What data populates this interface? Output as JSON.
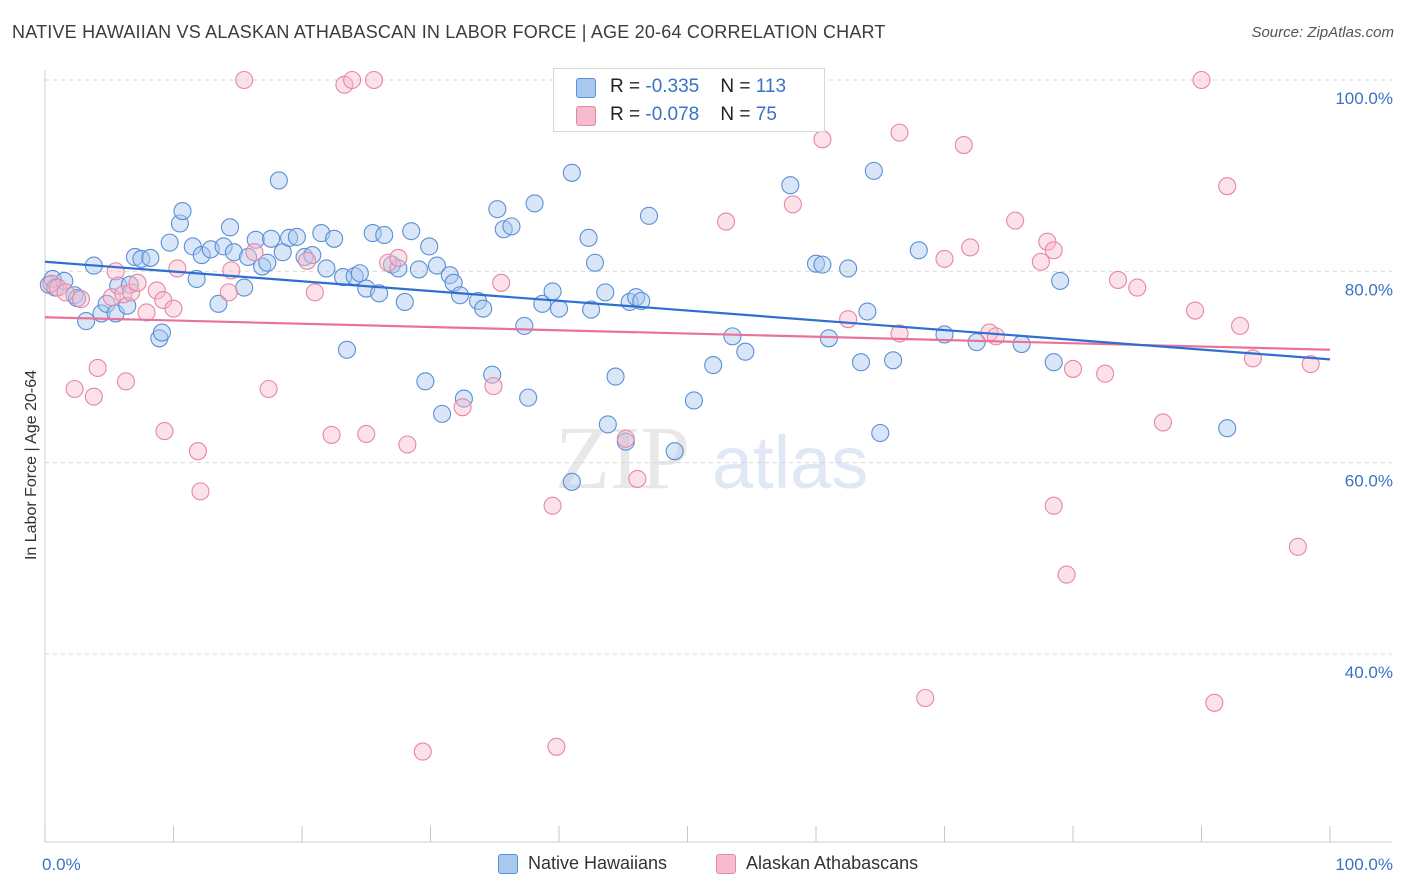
{
  "title": "NATIVE HAWAIIAN VS ALASKAN ATHABASCAN IN LABOR FORCE | AGE 20-64 CORRELATION CHART",
  "source": "Source: ZipAtlas.com",
  "watermark": {
    "zip": "ZIP",
    "atlas": "atlas"
  },
  "legend_top": {
    "rows": [
      {
        "r_label": "R = ",
        "r_value": "-0.335",
        "n_label": "N = ",
        "n_value": "113"
      },
      {
        "r_label": "R = ",
        "r_value": "-0.078",
        "n_label": "N = ",
        "n_value": "75"
      }
    ]
  },
  "colors": {
    "blue_fill": "#a9c8f0",
    "blue_stroke": "#5b8fd6",
    "blue_line": "#2f6fd0",
    "pink_fill": "#f6bccd",
    "pink_stroke": "#e886a6",
    "pink_line": "#e8739a",
    "axis_text": "#3a72c4"
  },
  "chart_data": {
    "type": "scatter",
    "title": "NATIVE HAWAIIAN VS ALASKAN ATHABASCAN IN LABOR FORCE | AGE 20-64 CORRELATION CHART",
    "xlabel": "",
    "ylabel": "In Labor Force | Age 20-64",
    "xlim": [
      0,
      100
    ],
    "ylim": [
      20,
      102
    ],
    "x_tick_labels": [
      "0.0%",
      "100.0%"
    ],
    "y_ticks": [
      40,
      60,
      80,
      100
    ],
    "y_tick_labels": [
      "40.0%",
      "60.0%",
      "80.0%",
      "100.0%"
    ],
    "grid": "horizontal dashed",
    "legend_position": "top-center and bottom",
    "series": [
      {
        "name": "Native Hawaiians",
        "color": "#5b8fd6",
        "r": -0.335,
        "n": 113,
        "trend": {
          "x": [
            0,
            100
          ],
          "y": [
            81.0,
            70.8
          ]
        },
        "points": [
          [
            0.3,
            78.6
          ],
          [
            0.6,
            79.2
          ],
          [
            0.8,
            78.3
          ],
          [
            1.5,
            79.0
          ],
          [
            2.3,
            77.5
          ],
          [
            2.5,
            77.2
          ],
          [
            3.2,
            74.8
          ],
          [
            3.8,
            80.6
          ],
          [
            4.4,
            75.6
          ],
          [
            4.8,
            76.6
          ],
          [
            5.5,
            75.6
          ],
          [
            5.7,
            78.5
          ],
          [
            6.4,
            76.4
          ],
          [
            6.6,
            78.6
          ],
          [
            7.0,
            81.5
          ],
          [
            7.5,
            81.3
          ],
          [
            8.2,
            81.4
          ],
          [
            8.9,
            73.0
          ],
          [
            9.1,
            73.6
          ],
          [
            9.7,
            83.0
          ],
          [
            10.5,
            85.0
          ],
          [
            10.7,
            86.3
          ],
          [
            11.5,
            82.6
          ],
          [
            11.8,
            79.2
          ],
          [
            12.2,
            81.7
          ],
          [
            12.9,
            82.3
          ],
          [
            13.5,
            76.6
          ],
          [
            13.9,
            82.6
          ],
          [
            14.4,
            84.6
          ],
          [
            14.7,
            82.0
          ],
          [
            15.5,
            78.3
          ],
          [
            15.8,
            81.5
          ],
          [
            16.4,
            83.3
          ],
          [
            16.9,
            80.5
          ],
          [
            17.3,
            80.9
          ],
          [
            17.6,
            83.4
          ],
          [
            18.2,
            89.5
          ],
          [
            18.5,
            82.0
          ],
          [
            19.0,
            83.5
          ],
          [
            19.6,
            83.6
          ],
          [
            20.2,
            81.5
          ],
          [
            20.8,
            81.7
          ],
          [
            21.5,
            84.0
          ],
          [
            21.9,
            80.3
          ],
          [
            22.5,
            83.4
          ],
          [
            23.2,
            79.4
          ],
          [
            23.5,
            71.8
          ],
          [
            24.1,
            79.5
          ],
          [
            24.5,
            79.8
          ],
          [
            25.0,
            78.2
          ],
          [
            25.5,
            84.0
          ],
          [
            26.0,
            77.7
          ],
          [
            26.4,
            83.8
          ],
          [
            27.0,
            80.7
          ],
          [
            27.5,
            80.3
          ],
          [
            28.0,
            76.8
          ],
          [
            28.5,
            84.2
          ],
          [
            29.1,
            80.2
          ],
          [
            29.6,
            68.5
          ],
          [
            29.9,
            82.6
          ],
          [
            30.5,
            80.6
          ],
          [
            30.9,
            65.1
          ],
          [
            31.5,
            79.6
          ],
          [
            31.8,
            78.8
          ],
          [
            32.3,
            77.5
          ],
          [
            32.6,
            66.7
          ],
          [
            33.7,
            76.9
          ],
          [
            34.1,
            76.1
          ],
          [
            34.8,
            69.2
          ],
          [
            35.2,
            86.5
          ],
          [
            35.7,
            84.4
          ],
          [
            36.3,
            84.7
          ],
          [
            37.3,
            74.3
          ],
          [
            37.6,
            66.8
          ],
          [
            38.1,
            87.1
          ],
          [
            38.7,
            76.6
          ],
          [
            39.5,
            77.9
          ],
          [
            40.0,
            76.1
          ],
          [
            41.0,
            90.3
          ],
          [
            41.0,
            58.0
          ],
          [
            42.3,
            83.5
          ],
          [
            42.5,
            76.0
          ],
          [
            42.8,
            80.9
          ],
          [
            43.6,
            77.8
          ],
          [
            43.8,
            64.0
          ],
          [
            44.4,
            69.0
          ],
          [
            45.2,
            62.2
          ],
          [
            45.5,
            76.8
          ],
          [
            46.0,
            77.3
          ],
          [
            46.4,
            76.9
          ],
          [
            47.0,
            85.8
          ],
          [
            49.0,
            61.2
          ],
          [
            50.5,
            66.5
          ],
          [
            52.0,
            70.2
          ],
          [
            53.5,
            73.2
          ],
          [
            54.5,
            71.6
          ],
          [
            58.0,
            89.0
          ],
          [
            60.0,
            80.8
          ],
          [
            60.5,
            80.7
          ],
          [
            61.0,
            73.0
          ],
          [
            62.5,
            80.3
          ],
          [
            63.5,
            70.5
          ],
          [
            64.0,
            75.8
          ],
          [
            64.5,
            90.5
          ],
          [
            65.0,
            63.1
          ],
          [
            66.0,
            70.7
          ],
          [
            68.0,
            82.2
          ],
          [
            70.0,
            73.4
          ],
          [
            72.5,
            72.6
          ],
          [
            76.0,
            72.4
          ],
          [
            78.5,
            70.5
          ],
          [
            79.0,
            79.0
          ],
          [
            92.0,
            63.6
          ]
        ]
      },
      {
        "name": "Alaskan Athabascans",
        "color": "#e886a6",
        "r": -0.078,
        "n": 75,
        "trend": {
          "x": [
            0,
            100
          ],
          "y": [
            75.2,
            71.8
          ]
        },
        "points": [
          [
            0.5,
            78.7
          ],
          [
            1.0,
            78.3
          ],
          [
            1.6,
            77.8
          ],
          [
            2.3,
            67.7
          ],
          [
            2.8,
            77.1
          ],
          [
            3.8,
            66.9
          ],
          [
            4.1,
            69.9
          ],
          [
            5.2,
            77.3
          ],
          [
            5.5,
            80.0
          ],
          [
            6.1,
            77.6
          ],
          [
            6.3,
            68.5
          ],
          [
            6.7,
            77.8
          ],
          [
            7.2,
            78.8
          ],
          [
            7.9,
            75.7
          ],
          [
            8.7,
            78.0
          ],
          [
            9.2,
            77.0
          ],
          [
            9.3,
            63.3
          ],
          [
            10.0,
            76.1
          ],
          [
            10.3,
            80.3
          ],
          [
            11.9,
            61.2
          ],
          [
            12.1,
            57.0
          ],
          [
            14.3,
            77.8
          ],
          [
            14.5,
            80.1
          ],
          [
            15.5,
            100.0
          ],
          [
            16.3,
            82.0
          ],
          [
            17.4,
            67.7
          ],
          [
            20.4,
            81.1
          ],
          [
            21.0,
            77.8
          ],
          [
            22.3,
            62.9
          ],
          [
            23.3,
            99.5
          ],
          [
            23.9,
            100.0
          ],
          [
            25.0,
            63.0
          ],
          [
            25.6,
            100.0
          ],
          [
            26.7,
            80.9
          ],
          [
            27.5,
            81.4
          ],
          [
            28.2,
            61.9
          ],
          [
            29.4,
            29.8
          ],
          [
            32.5,
            65.8
          ],
          [
            34.9,
            68.0
          ],
          [
            35.5,
            78.8
          ],
          [
            39.5,
            55.5
          ],
          [
            39.8,
            30.3
          ],
          [
            45.2,
            62.5
          ],
          [
            46.1,
            58.3
          ],
          [
            53.0,
            85.2
          ],
          [
            58.2,
            87.0
          ],
          [
            60.5,
            93.8
          ],
          [
            62.5,
            75.0
          ],
          [
            66.5,
            73.5
          ],
          [
            66.5,
            94.5
          ],
          [
            68.5,
            35.4
          ],
          [
            70.0,
            81.3
          ],
          [
            71.5,
            93.2
          ],
          [
            72.0,
            82.5
          ],
          [
            73.5,
            73.6
          ],
          [
            74.0,
            73.2
          ],
          [
            75.5,
            85.3
          ],
          [
            77.5,
            81.0
          ],
          [
            78.0,
            83.1
          ],
          [
            78.5,
            55.5
          ],
          [
            78.5,
            82.2
          ],
          [
            79.5,
            48.3
          ],
          [
            80.0,
            69.8
          ],
          [
            82.5,
            69.3
          ],
          [
            83.5,
            79.1
          ],
          [
            85.0,
            78.3
          ],
          [
            87.0,
            64.2
          ],
          [
            89.5,
            75.9
          ],
          [
            90.0,
            100.0
          ],
          [
            91.0,
            34.9
          ],
          [
            92.0,
            88.9
          ],
          [
            93.0,
            74.3
          ],
          [
            94.0,
            70.9
          ],
          [
            97.5,
            51.2
          ],
          [
            98.5,
            70.3
          ]
        ]
      }
    ]
  },
  "legend_bottom": {
    "items": [
      "Native Hawaiians",
      "Alaskan Athabascans"
    ]
  }
}
